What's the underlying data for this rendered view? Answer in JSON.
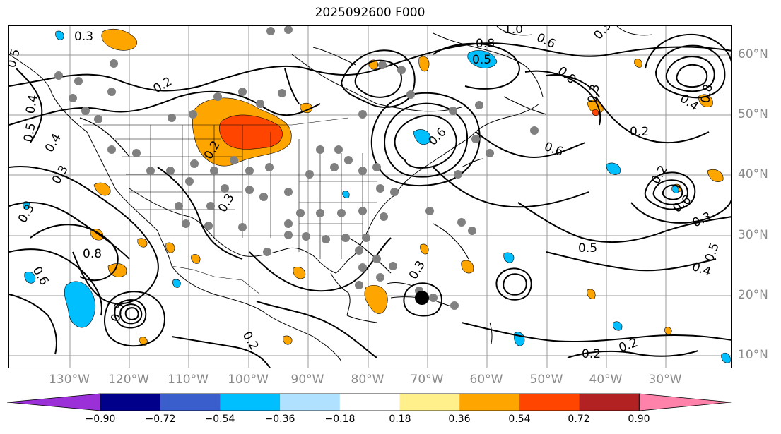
{
  "title": "2025092600 F000",
  "map": {
    "lon_labels": [
      "130°W",
      "120°W",
      "110°W",
      "100°W",
      "90°W",
      "80°W",
      "70°W",
      "60°W",
      "50°W",
      "40°W",
      "30°W"
    ],
    "lat_labels": [
      "60°N",
      "50°N",
      "40°N",
      "30°N",
      "20°N",
      "10°N"
    ],
    "contour_labels": [
      "0.3",
      "0.2",
      "0.5",
      "0.4",
      "0.5",
      "0.3",
      "0.4",
      "0.8",
      "0.2",
      "0.6",
      "0.3",
      "0.3",
      "0.2",
      "0.3",
      "0.3",
      "0.5",
      "0.2",
      "0.2",
      "0.6",
      "0.5",
      "0.8",
      "0.6",
      "0.8",
      "0.2",
      "0.4",
      "1.0",
      "0.6",
      "0.8",
      "0.3",
      "0.2",
      "0.6",
      "0.3",
      "0.3",
      "0.5",
      "0.4"
    ],
    "colors": {
      "land_outline": "#000000",
      "contour": "#000000",
      "grid": "#9a9a9a",
      "station_dot": "#808080",
      "storm_center": "#000000"
    }
  },
  "colorbar": {
    "ticks": [
      "−0.90",
      "−0.72",
      "−0.54",
      "−0.36",
      "−0.18",
      "0.18",
      "0.36",
      "0.54",
      "0.72",
      "0.90"
    ],
    "colors": [
      "#9b30d9",
      "#00008b",
      "#3a5fcd",
      "#00bfff",
      "#b0e2ff",
      "#ffffff",
      "#fff08c",
      "#ffa500",
      "#ff4500",
      "#b22222",
      "#ff82ab"
    ]
  }
}
